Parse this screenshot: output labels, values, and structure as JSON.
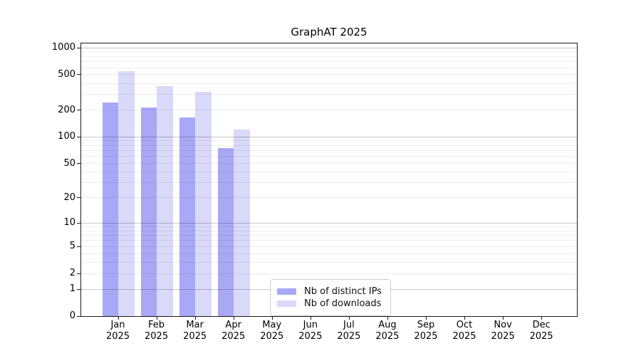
{
  "title": "GraphAT 2025",
  "chart_data": {
    "type": "bar",
    "title": "GraphAT 2025",
    "yscale": "log1p",
    "grid": "on",
    "ylim": [
      0,
      1120
    ],
    "yticks": [
      0,
      1,
      2,
      5,
      10,
      20,
      50,
      100,
      200,
      500,
      1000
    ],
    "months": [
      "Jan",
      "Feb",
      "Mar",
      "Apr",
      "May",
      "Jun",
      "Jul",
      "Aug",
      "Sep",
      "Oct",
      "Nov",
      "Dec"
    ],
    "year": "2025",
    "series": [
      {
        "name": "Nb of distinct IPs",
        "color": "#a8a8f6",
        "values": [
          245,
          215,
          165,
          75,
          null,
          null,
          null,
          null,
          null,
          null,
          null,
          null
        ]
      },
      {
        "name": "Nb of downloads",
        "color": "#d9d9f9",
        "values": [
          545,
          375,
          320,
          120,
          null,
          null,
          null,
          null,
          null,
          null,
          null,
          null
        ]
      }
    ],
    "legend_position": "lower-center-inside"
  },
  "colors": {
    "grid_minor": "rgba(0,0,0,0.07)",
    "grid_major": "rgba(0,0,0,0.22)",
    "axis": "#1a1a1a"
  }
}
